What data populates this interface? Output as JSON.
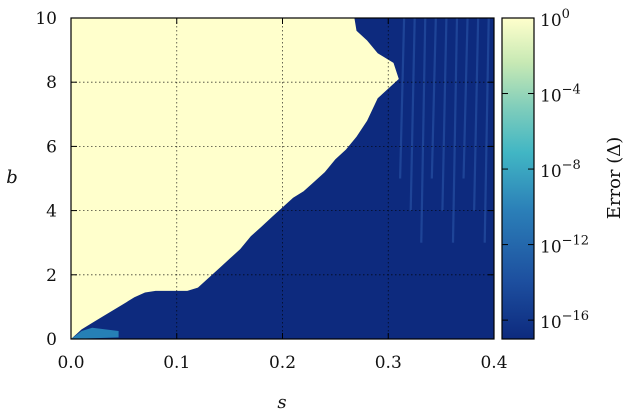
{
  "chart_data": {
    "type": "heatmap",
    "title": "",
    "xlabel": "s",
    "ylabel": "b",
    "xlim": [
      0.0,
      0.4
    ],
    "ylim": [
      0,
      10
    ],
    "x_ticks": [
      "0.0",
      "0.1",
      "0.2",
      "0.3",
      "0.4"
    ],
    "y_ticks": [
      "0",
      "2",
      "4",
      "6",
      "8",
      "10"
    ],
    "grid": true,
    "log_color_scale": true,
    "colorbar": {
      "label": "Error (Δ)",
      "range": [
        1e-17,
        1
      ],
      "ticks": [
        {
          "value": 1,
          "base": "10",
          "exp": "0"
        },
        {
          "value": 0.0001,
          "base": "10",
          "exp": "−4"
        },
        {
          "value": 1e-08,
          "base": "10",
          "exp": "−8"
        },
        {
          "value": 1e-12,
          "base": "10",
          "exp": "−12"
        },
        {
          "value": 1e-16,
          "base": "10",
          "exp": "−16"
        }
      ],
      "colors": [
        "#0d2a7e",
        "#1d4f9f",
        "#2b7fb8",
        "#41b6c4",
        "#7fcdbb",
        "#c7e9b4",
        "#ffffcc"
      ]
    },
    "boundary": {
      "description": "b at which error transitions from ~1 (upper-left) to ~1e-16 (lower-right)",
      "s": [
        0.0,
        0.005,
        0.01,
        0.02,
        0.03,
        0.04,
        0.05,
        0.06,
        0.07,
        0.08,
        0.09,
        0.1,
        0.11,
        0.12,
        0.13,
        0.14,
        0.15,
        0.16,
        0.17,
        0.18,
        0.19,
        0.2,
        0.21,
        0.22,
        0.23,
        0.24,
        0.25,
        0.26,
        0.27,
        0.28,
        0.29,
        0.3,
        0.31,
        0.305,
        0.29,
        0.28,
        0.27,
        0.268
      ],
      "b": [
        0.0,
        0.15,
        0.3,
        0.5,
        0.7,
        0.9,
        1.1,
        1.3,
        1.45,
        1.5,
        1.5,
        1.5,
        1.5,
        1.6,
        1.9,
        2.2,
        2.5,
        2.8,
        3.2,
        3.5,
        3.8,
        4.1,
        4.4,
        4.6,
        4.9,
        5.2,
        5.6,
        5.9,
        6.3,
        6.8,
        7.5,
        7.8,
        8.1,
        8.6,
        8.9,
        9.3,
        9.6,
        10.0
      ]
    },
    "low_error_value": 1e-16,
    "high_error_value": 1
  }
}
